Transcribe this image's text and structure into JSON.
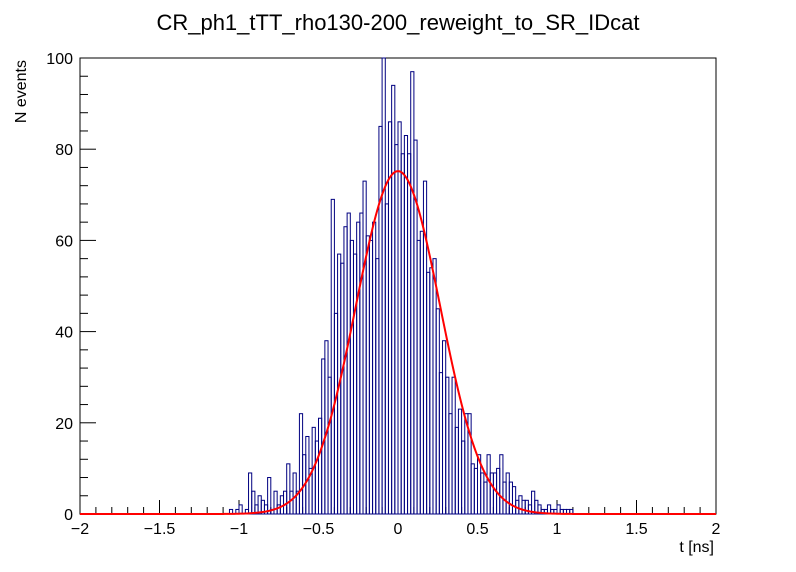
{
  "chart_data": {
    "type": "histogram",
    "title": "CR_ph1_tTT_rho130-200_reweight_to_SR_IDcat",
    "xlabel": "t [ns]",
    "ylabel": "N events",
    "xlim": [
      -2,
      2
    ],
    "ylim": [
      0,
      100
    ],
    "x_ticks": [
      -2,
      -1.5,
      -1,
      -0.5,
      0,
      0.5,
      1,
      1.5,
      2
    ],
    "x_tick_labels": [
      "−2",
      "−1.5",
      "−1",
      "−0.5",
      "0",
      "0.5",
      "1",
      "1.5",
      "2"
    ],
    "y_ticks": [
      0,
      20,
      40,
      60,
      80,
      100
    ],
    "y_tick_labels": [
      "0",
      "20",
      "40",
      "60",
      "80",
      "100"
    ],
    "grid": false,
    "colors": {
      "histogram": "#000080",
      "fit": "#ff0000"
    },
    "histogram": {
      "bin_width": 0.02,
      "x": [
        -1.05,
        -1.01,
        -0.99,
        -0.97,
        -0.95,
        -0.93,
        -0.91,
        -0.89,
        -0.87,
        -0.85,
        -0.83,
        -0.81,
        -0.79,
        -0.77,
        -0.75,
        -0.73,
        -0.71,
        -0.69,
        -0.67,
        -0.65,
        -0.63,
        -0.61,
        -0.59,
        -0.57,
        -0.55,
        -0.53,
        -0.51,
        -0.49,
        -0.47,
        -0.45,
        -0.43,
        -0.41,
        -0.39,
        -0.37,
        -0.35,
        -0.33,
        -0.31,
        -0.29,
        -0.27,
        -0.25,
        -0.23,
        -0.21,
        -0.19,
        -0.17,
        -0.15,
        -0.13,
        -0.11,
        -0.09,
        -0.07,
        -0.05,
        -0.03,
        -0.01,
        0.01,
        0.03,
        0.05,
        0.07,
        0.09,
        0.11,
        0.13,
        0.15,
        0.17,
        0.19,
        0.21,
        0.23,
        0.25,
        0.27,
        0.29,
        0.31,
        0.33,
        0.35,
        0.37,
        0.39,
        0.41,
        0.43,
        0.45,
        0.47,
        0.49,
        0.51,
        0.53,
        0.55,
        0.57,
        0.59,
        0.61,
        0.63,
        0.65,
        0.67,
        0.69,
        0.71,
        0.73,
        0.75,
        0.77,
        0.79,
        0.81,
        0.83,
        0.85,
        0.87,
        0.89,
        0.91,
        0.93,
        0.95,
        0.97,
        0.99,
        1.01,
        1.03,
        1.05,
        1.07,
        1.09
      ],
      "y": [
        1,
        1,
        2,
        0,
        1,
        9,
        5,
        2,
        4,
        3,
        2,
        8,
        1,
        5,
        2,
        4,
        5,
        11,
        5,
        9,
        5,
        22,
        13,
        17,
        10,
        19,
        16,
        21,
        34,
        38,
        30,
        69,
        44,
        57,
        55,
        63,
        66,
        60,
        57,
        64,
        66,
        73,
        61,
        60,
        64,
        56,
        85,
        100,
        68,
        86,
        94,
        81,
        86,
        79,
        83,
        79,
        97,
        82,
        60,
        62,
        73,
        53,
        54,
        56,
        45,
        31,
        38,
        30,
        22,
        30,
        19,
        23,
        16,
        22,
        22,
        11,
        10,
        13,
        9,
        7,
        13,
        9,
        9,
        10,
        13,
        7,
        9,
        7,
        6,
        3,
        4,
        3,
        3,
        2,
        5,
        3,
        2,
        1,
        1,
        2,
        1,
        1,
        2,
        1,
        1,
        1,
        1
      ]
    },
    "fit": {
      "function": "gaussian",
      "amplitude": 75.2,
      "mean": 0.0,
      "sigma": 0.265,
      "x_range": [
        -2,
        2
      ]
    }
  }
}
